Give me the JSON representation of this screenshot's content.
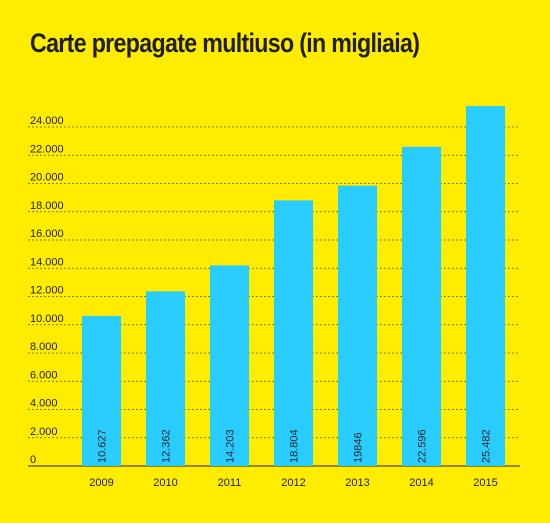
{
  "chart_data": {
    "type": "bar",
    "title": "Carte prepagate multiuso (in migliaia)",
    "categories": [
      "2009",
      "2010",
      "2011",
      "2012",
      "2013",
      "2014",
      "2015"
    ],
    "values": [
      10627,
      12362,
      14203,
      18804,
      19846,
      22596,
      25482
    ],
    "value_labels": [
      "10.627",
      "12.362",
      "14.203",
      "18.804",
      "19846",
      "22.596",
      "25.482"
    ],
    "y_ticks": [
      0,
      2000,
      4000,
      6000,
      8000,
      10000,
      12000,
      14000,
      16000,
      18000,
      20000,
      22000,
      24000
    ],
    "y_tick_labels": [
      "0",
      "2.000",
      "4.000",
      "6.000",
      "8.000",
      "10.000",
      "12.000",
      "14.000",
      "16.000",
      "18.000",
      "20.000",
      "22.000",
      "24.000"
    ],
    "ylim": [
      0,
      24000
    ],
    "grid": true,
    "grid_style": "dashed",
    "legend": false,
    "xlabel": "",
    "ylabel": "",
    "colors": {
      "background": "#FFEC00",
      "bar": "#29CCFF",
      "text": "#222222",
      "grid": "#555555"
    }
  }
}
